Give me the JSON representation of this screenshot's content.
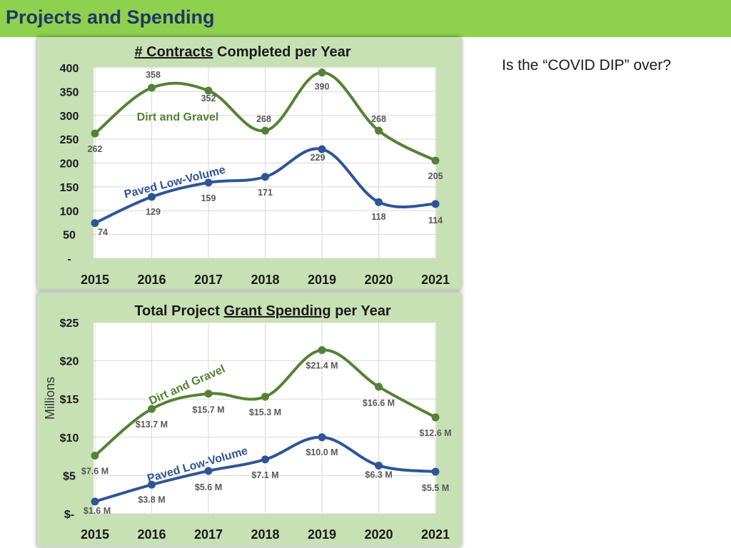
{
  "header": {
    "title": "Projects and Spending"
  },
  "side_note": "Is the “COVID DIP” over?",
  "colors": {
    "header": "#8fd14f",
    "dirt_gravel": "#548235",
    "paved": "#2f5597",
    "panel": "#c7e0b4"
  },
  "chart_data": [
    {
      "type": "line",
      "title_parts": [
        "# Contracts",
        " Completed per Year"
      ],
      "title_underlined_part": "# Contracts",
      "categories": [
        "2015",
        "2016",
        "2017",
        "2018",
        "2019",
        "2020",
        "2021"
      ],
      "y_ticks": [
        "400",
        "350",
        "300",
        "250",
        "200",
        "150",
        "100",
        "50",
        "-"
      ],
      "ylim": [
        0,
        400
      ],
      "grid": true,
      "series": [
        {
          "name": "Dirt and Gravel",
          "values": [
            262,
            358,
            352,
            268,
            390,
            268,
            205
          ],
          "labels": [
            "262",
            "358",
            "352",
            "268",
            "390",
            "268",
            "205"
          ]
        },
        {
          "name": "Paved Low-Volume",
          "values": [
            74,
            129,
            159,
            171,
            229,
            118,
            114
          ],
          "labels": [
            "74",
            "129",
            "159",
            "171",
            "229",
            "118",
            "114"
          ]
        }
      ]
    },
    {
      "type": "line",
      "title_parts": [
        "Total Project ",
        "Grant Spending",
        " per Year"
      ],
      "title_underlined_part": "Grant Spending",
      "categories": [
        "2015",
        "2016",
        "2017",
        "2018",
        "2019",
        "2020",
        "2021"
      ],
      "y_ticks": [
        "$25",
        "$20",
        "$15",
        "$10",
        "$5",
        "$-"
      ],
      "ylabel": "Millions",
      "ylim": [
        0,
        25
      ],
      "grid": true,
      "series": [
        {
          "name": "Dirt and Gravel",
          "values": [
            7.6,
            13.7,
            15.7,
            15.3,
            21.4,
            16.6,
            12.6
          ],
          "labels": [
            "$7.6 M",
            "$13.7 M",
            "$15.7 M",
            "$15.3 M",
            "$21.4 M",
            "$16.6 M",
            "$12.6 M"
          ]
        },
        {
          "name": "Paved Low-Volume",
          "values": [
            1.6,
            3.8,
            5.6,
            7.1,
            10.0,
            6.3,
            5.5
          ],
          "labels": [
            "$1.6 M",
            "$3.8 M",
            "$5.6 M",
            "$7.1 M",
            "$10.0 M",
            "$6.3 M",
            "$5.5 M"
          ]
        }
      ]
    }
  ]
}
